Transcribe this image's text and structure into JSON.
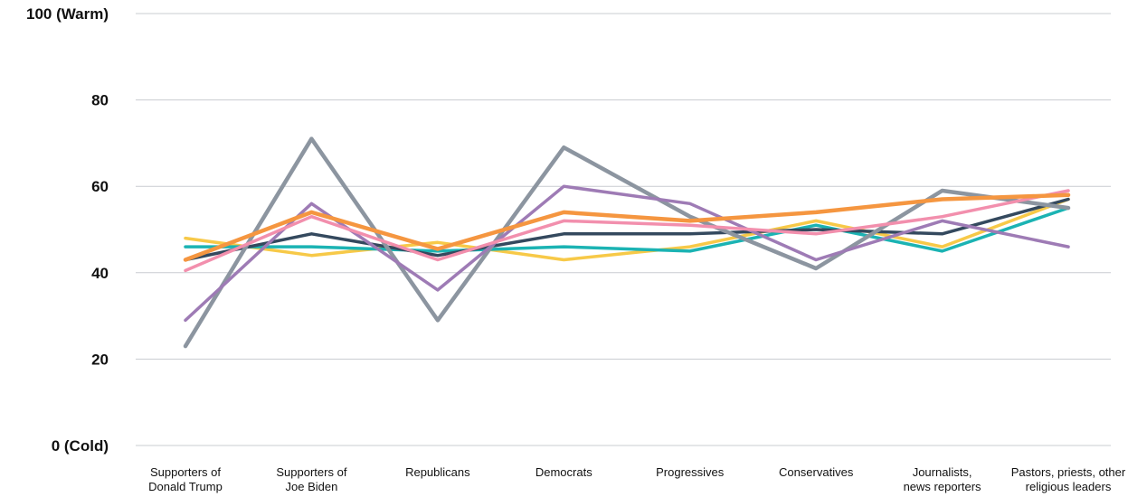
{
  "chart_data": {
    "type": "line",
    "title": "",
    "xlabel": "",
    "ylabel": "",
    "ylim": [
      0,
      100
    ],
    "y_ticks": [
      {
        "value": 0,
        "label": "0 (Cold)"
      },
      {
        "value": 20,
        "label": "20"
      },
      {
        "value": 40,
        "label": "40"
      },
      {
        "value": 60,
        "label": "60"
      },
      {
        "value": 80,
        "label": "80"
      },
      {
        "value": 100,
        "label": "100 (Warm)"
      }
    ],
    "grid": true,
    "legend": "none",
    "categories": [
      [
        "Supporters of",
        "Donald Trump"
      ],
      [
        "Supporters of",
        "Joe Biden"
      ],
      [
        "Republicans"
      ],
      [
        "Democrats"
      ],
      [
        "Progressives"
      ],
      [
        "Conservatives"
      ],
      [
        "Journalists,",
        "news reporters"
      ],
      [
        "Pastors, priests, other",
        "religious leaders"
      ]
    ],
    "series": [
      {
        "color": "#F7C948",
        "values": [
          48,
          44,
          47,
          43,
          46,
          52,
          46,
          57
        ]
      },
      {
        "color": "#1BB3B3",
        "values": [
          46,
          46,
          45,
          46,
          45,
          51,
          45,
          55
        ]
      },
      {
        "color": "#34495E",
        "values": [
          43,
          49,
          44,
          49,
          49,
          50,
          49,
          57
        ]
      },
      {
        "color": "#8C95A0",
        "values": [
          23,
          71,
          29,
          69,
          53,
          41,
          59,
          55
        ]
      },
      {
        "color": "#9E7BB5",
        "values": [
          29,
          56,
          36,
          60,
          56,
          43,
          52,
          46
        ]
      },
      {
        "color": "#F28FAD",
        "values": [
          40.5,
          53,
          43,
          52,
          51,
          49,
          53,
          59
        ]
      },
      {
        "color": "#F59640",
        "values": [
          43,
          54,
          45.5,
          54,
          52,
          54,
          57,
          58
        ]
      }
    ]
  }
}
